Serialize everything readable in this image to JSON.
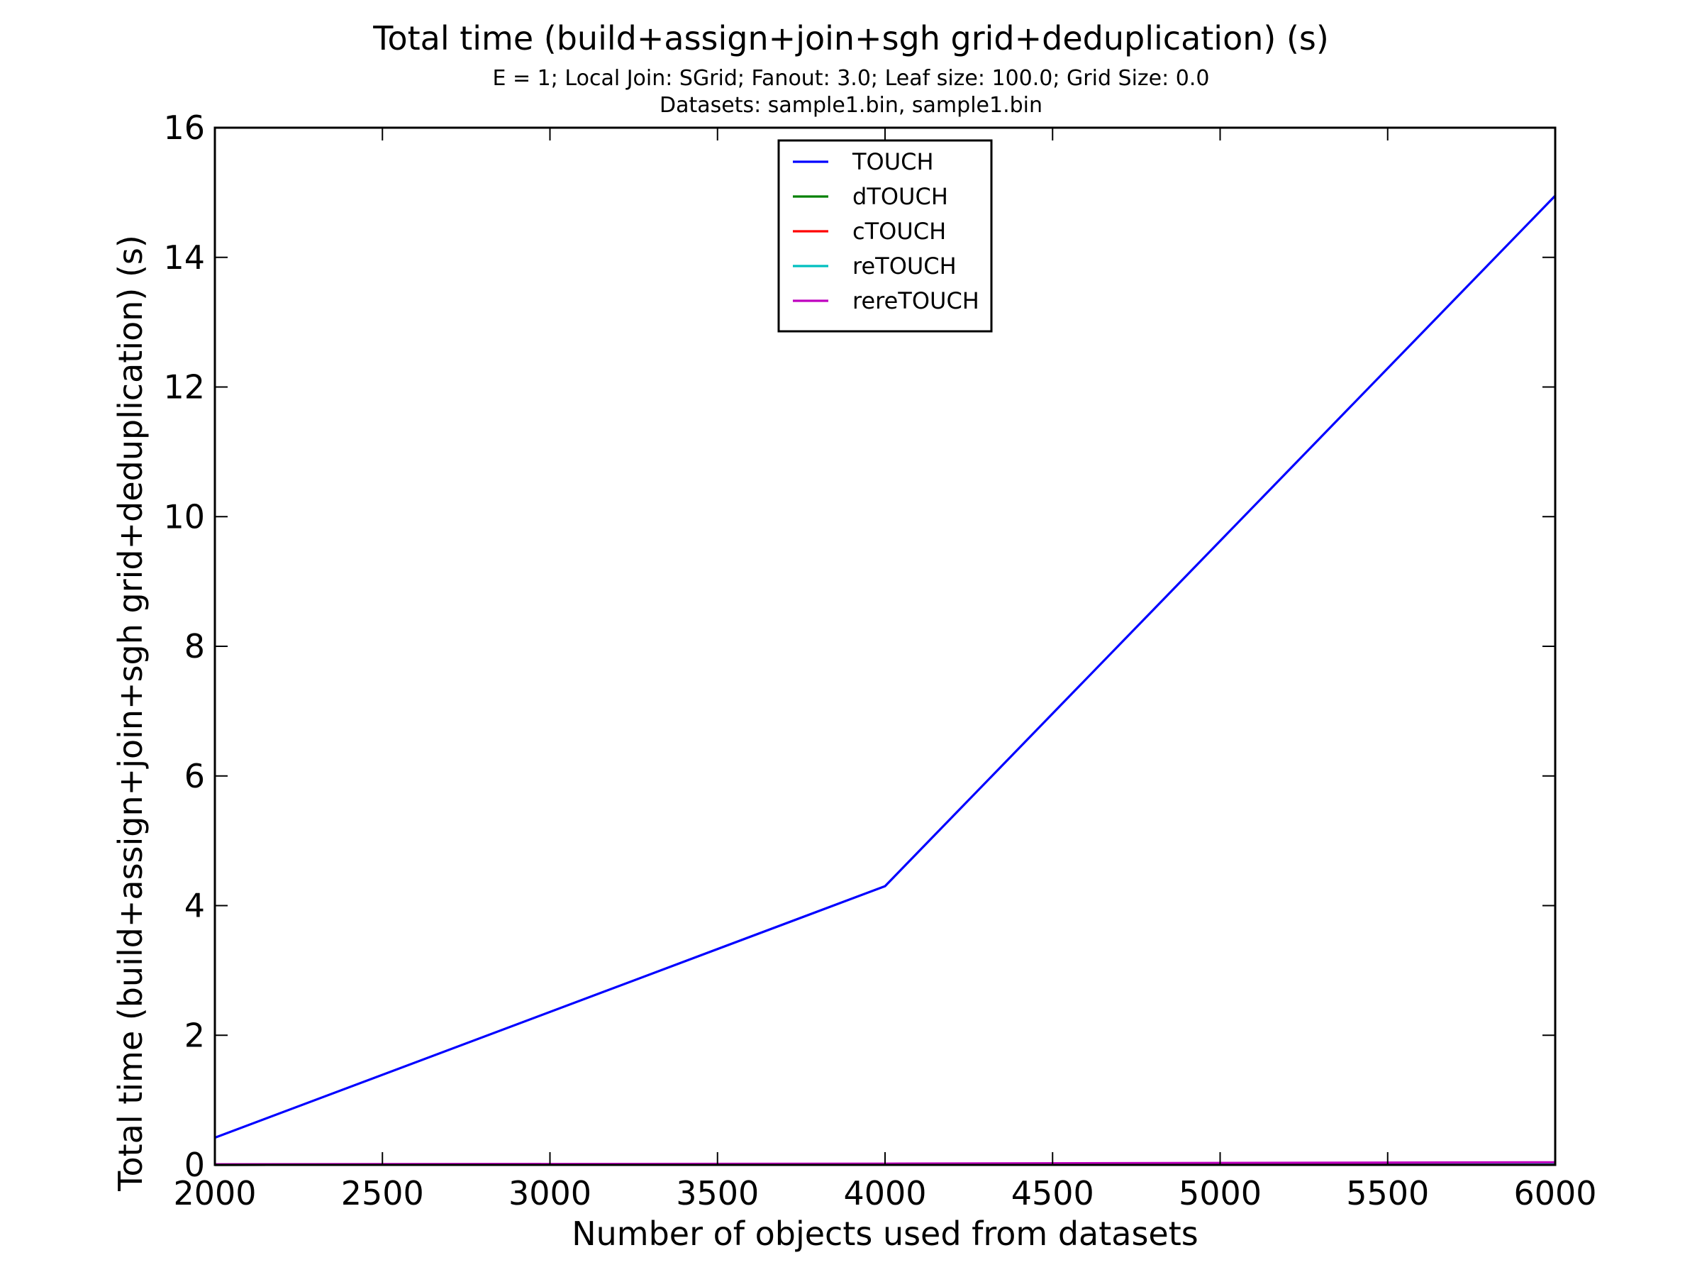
{
  "chart_data": {
    "type": "line",
    "title": "Total time (build+assign+join+sgh grid+deduplication) (s)",
    "subtitle_lines": [
      "E = 1; Local Join: SGrid; Fanout: 3.0; Leaf size: 100.0; Grid Size: 0.0",
      "Datasets: sample1.bin, sample1.bin"
    ],
    "xlabel": "Number of objects used from datasets",
    "ylabel": "Total time (build+assign+join+sgh grid+deduplication) (s)",
    "xlim": [
      2000,
      6000
    ],
    "ylim": [
      0,
      16
    ],
    "xticks": [
      2000,
      2500,
      3000,
      3500,
      4000,
      4500,
      5000,
      5500,
      6000
    ],
    "yticks": [
      0,
      2,
      4,
      6,
      8,
      10,
      12,
      14,
      16
    ],
    "grid": false,
    "legend_position": "top-center",
    "x": [
      2000,
      4000,
      6000
    ],
    "series": [
      {
        "name": "TOUCH",
        "color": "#0000ff",
        "values": [
          0.42,
          4.3,
          14.95
        ]
      },
      {
        "name": "dTOUCH",
        "color": "#008000",
        "values": [
          0.0,
          0.01,
          0.02
        ]
      },
      {
        "name": "cTOUCH",
        "color": "#ff0000",
        "values": [
          0.0,
          0.01,
          0.02
        ]
      },
      {
        "name": "reTOUCH",
        "color": "#00bfbf",
        "values": [
          0.0,
          0.01,
          0.02
        ]
      },
      {
        "name": "rereTOUCH",
        "color": "#bf00bf",
        "values": [
          0.01,
          0.02,
          0.04
        ]
      }
    ]
  }
}
